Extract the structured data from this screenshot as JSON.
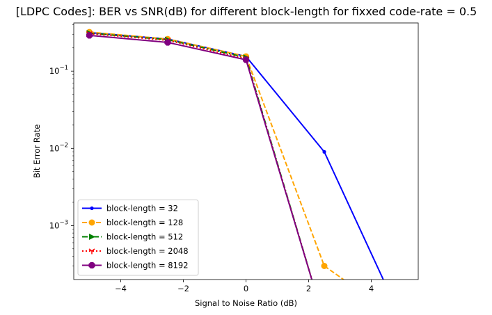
{
  "chart_data": {
    "type": "line",
    "title": "[LDPC Codes]: BER vs SNR(dB) for different block-length for fixxed code-rate = 0.5",
    "xlabel": "Signal to Noise Ratio (dB)",
    "ylabel": "Bit Error Rate",
    "xlim": [
      -5.5,
      5.5
    ],
    "ylim": [
      0.0002,
      0.42
    ],
    "yscale": "log",
    "xticks": [
      -4,
      -2,
      0,
      2,
      4
    ],
    "xtick_labels": [
      "−4",
      "−2",
      "0",
      "2",
      "4"
    ],
    "yticks": [
      0.001,
      0.01,
      0.1
    ],
    "ytick_labels": [
      "10",
      "10",
      "10"
    ],
    "ytick_exponents": [
      "−3",
      "−2",
      "−1"
    ],
    "grid": false,
    "legend_location": "lower-left",
    "x": [
      -5,
      -2.5,
      0,
      2.5,
      5
    ],
    "series": [
      {
        "name": "block-length = 32",
        "color": "#0000ff",
        "linestyle": "solid",
        "marker": "point",
        "values": [
          0.315,
          0.26,
          0.155,
          0.009,
          0
        ]
      },
      {
        "name": "block-length = 128",
        "color": "#ffa500",
        "linestyle": "dashed",
        "marker": "circle",
        "values": [
          0.32,
          0.26,
          0.155,
          0.0003,
          0
        ]
      },
      {
        "name": "block-length = 512",
        "color": "#008000",
        "linestyle": "dashdot",
        "marker": "triangle-right",
        "values": [
          0.31,
          0.255,
          0.15,
          0,
          0
        ]
      },
      {
        "name": "block-length = 2048",
        "color": "#ff0000",
        "linestyle": "dotted",
        "marker": "tri-down",
        "values": [
          0.305,
          0.25,
          0.145,
          0,
          0
        ]
      },
      {
        "name": "block-length = 8192",
        "color": "#800080",
        "linestyle": "solid",
        "marker": "octagon",
        "values": [
          0.29,
          0.235,
          0.14,
          0,
          0
        ]
      }
    ]
  }
}
